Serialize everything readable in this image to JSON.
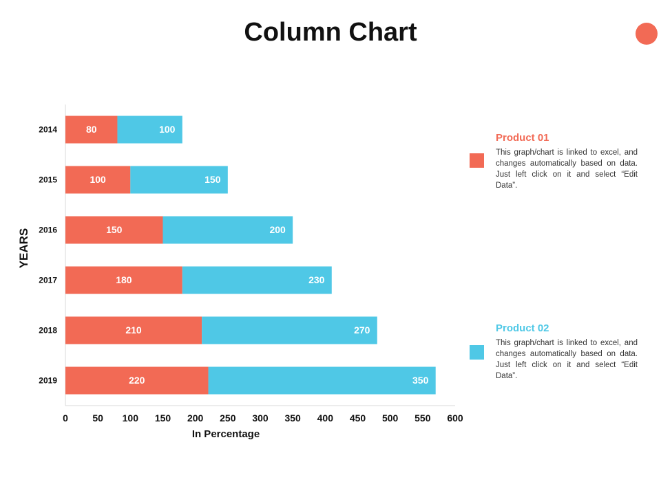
{
  "page": {
    "title": "Column Chart",
    "accent_dot_color": "#F26A55"
  },
  "legend": [
    {
      "name": "Product 01",
      "color": "#F26A55",
      "description": "This graph/chart is linked to excel, and changes automatically based on data. Just left click on it and select “Edit Data”."
    },
    {
      "name": "Product 02",
      "color": "#4FC8E6",
      "description": "This graph/chart is linked to excel, and changes automatically based on data. Just left click on it and select “Edit Data”."
    }
  ],
  "chart_data": {
    "type": "bar",
    "orientation": "horizontal",
    "stacked": true,
    "categories": [
      "2014",
      "2015",
      "2016",
      "2017",
      "2018",
      "2019"
    ],
    "series": [
      {
        "name": "Product 01",
        "color": "#F26A55",
        "values": [
          80,
          100,
          150,
          180,
          210,
          220
        ]
      },
      {
        "name": "Product 02",
        "color": "#4FC8E6",
        "values": [
          100,
          150,
          200,
          230,
          270,
          350
        ]
      }
    ],
    "xlabel": "In Percentage",
    "ylabel": "YEARS",
    "xlim": [
      0,
      600
    ],
    "xticks": [
      "0",
      "50",
      "100",
      "150",
      "200",
      "250",
      "300",
      "350",
      "400",
      "450",
      "500",
      "550",
      "600"
    ],
    "grid": false,
    "legend_position": "right"
  }
}
